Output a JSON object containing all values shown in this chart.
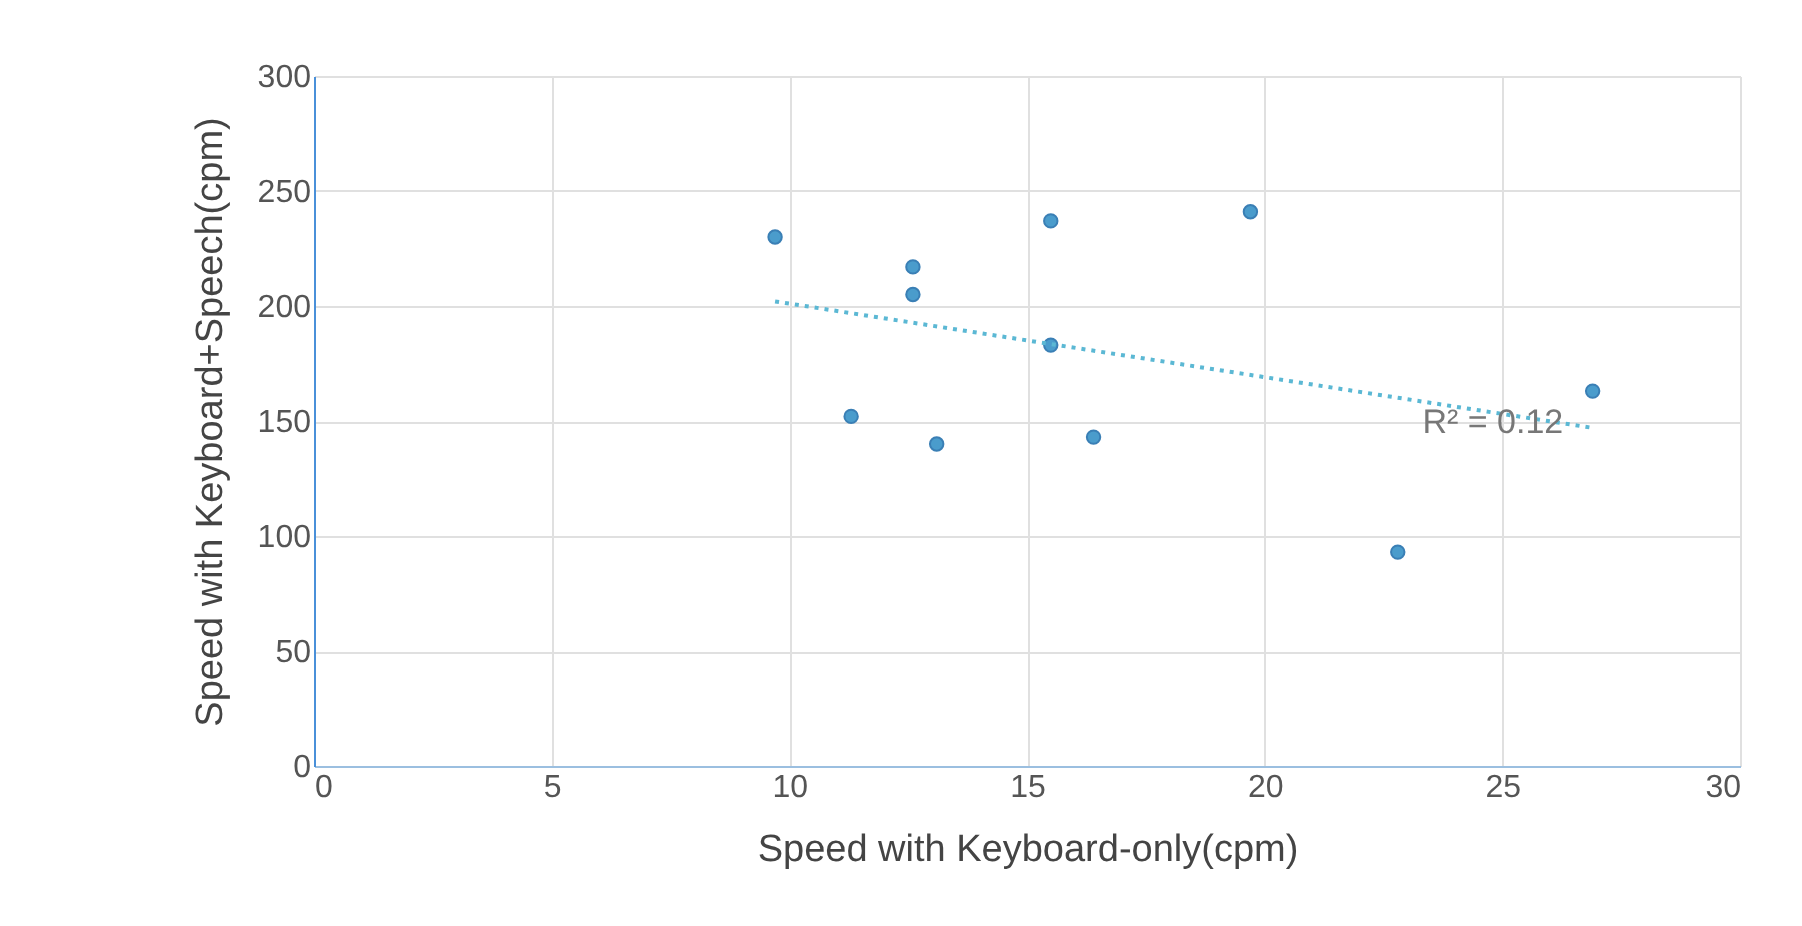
{
  "chart_data": {
    "type": "scatter",
    "xlabel": "Speed with Keyboard-only(cpm)",
    "ylabel": "Speed with Keyboard+Speech(cpm)",
    "xlim": [
      0,
      30
    ],
    "xticks": [
      0,
      5,
      10,
      15,
      20,
      25,
      30
    ],
    "ylim": [
      0,
      300
    ],
    "yticks": [
      0,
      50,
      100,
      150,
      200,
      250,
      300
    ],
    "grid": true,
    "series": [
      {
        "marker": "circle",
        "color": "#4a9ccc",
        "x": [
          9.7,
          11.3,
          12.6,
          12.6,
          13.1,
          15.5,
          15.5,
          16.4,
          19.7,
          22.8,
          26.9
        ],
        "values": [
          230,
          152,
          217,
          205,
          140,
          237,
          183,
          143,
          241,
          93,
          163
        ]
      },
      {
        "type": "line",
        "color": "#5bb8d4",
        "line_style": "dotted",
        "x": [
          9.7,
          26.9
        ],
        "values": [
          202,
          147
        ]
      }
    ],
    "annotations": [
      {
        "text": "R² = 0.12",
        "x": 24.8,
        "y": 149
      }
    ]
  }
}
